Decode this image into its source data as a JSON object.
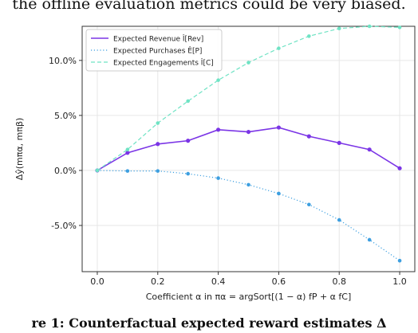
{
  "top_caption": "the offline evaluation metrics could be very biased.",
  "bottom_caption": "re 1: Counterfactual expected reward estimates Δ",
  "chart_data": {
    "type": "line",
    "x": [
      0.0,
      0.1,
      0.2,
      0.3,
      0.4,
      0.5,
      0.6,
      0.7,
      0.8,
      0.9,
      1.0
    ],
    "xlabel": "Coefficient α in πα = argSort[(1 − α) fP + α fC]",
    "ylabel": "Δŷ(mπα, mπβ)",
    "xlim": [
      -0.05,
      1.05
    ],
    "ylim": [
      -0.092,
      0.131
    ],
    "xticks": [
      0.0,
      0.2,
      0.4,
      0.6,
      0.8,
      1.0
    ],
    "xtick_labels": [
      "0.0",
      "0.2",
      "0.4",
      "0.6",
      "0.8",
      "1.0"
    ],
    "yticks": [
      -0.05,
      0.0,
      0.05,
      0.1
    ],
    "ytick_labels": [
      "-5.0%",
      "0.0%",
      "5.0%",
      "10.0%"
    ],
    "grid": true,
    "legend_position": "top-left",
    "series": [
      {
        "name": "Expected Revenue Î[Rev]",
        "style": "solid",
        "color": "#7b35e6",
        "values": [
          0.0,
          0.016,
          0.024,
          0.027,
          0.037,
          0.035,
          0.039,
          0.031,
          0.025,
          0.019,
          0.002
        ]
      },
      {
        "name": "Expected Purchases Ê[P]",
        "style": "dotted",
        "color": "#3d9fe0",
        "values": [
          0.0,
          -0.0005,
          -0.0005,
          -0.003,
          -0.007,
          -0.013,
          -0.021,
          -0.031,
          -0.045,
          -0.063,
          -0.082
        ]
      },
      {
        "name": "Expected Engagements Î[C]",
        "style": "dashed",
        "color": "#6fe3c4",
        "values": [
          0.0,
          0.019,
          0.043,
          0.063,
          0.082,
          0.098,
          0.111,
          0.122,
          0.129,
          0.131,
          0.13
        ]
      }
    ]
  }
}
